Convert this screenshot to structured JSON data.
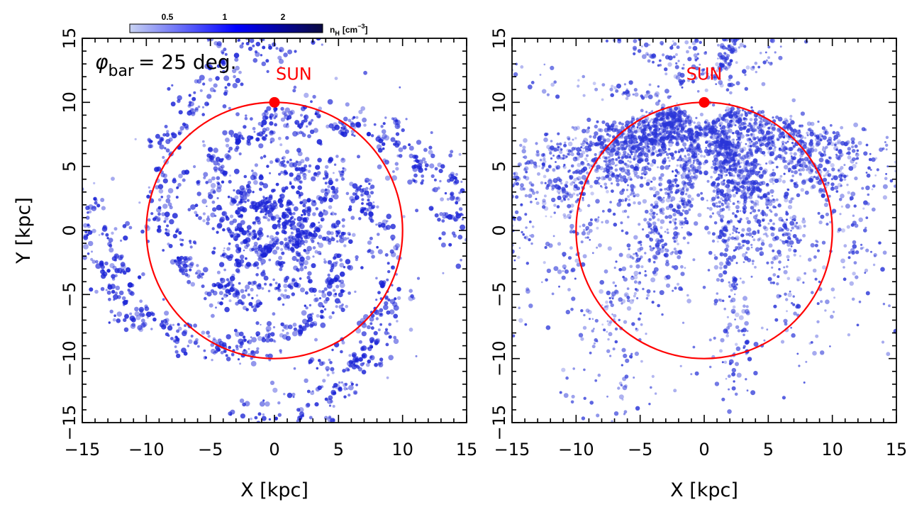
{
  "chart_data": [
    {
      "type": "scatter",
      "panel": "left",
      "annotation": {
        "symbol": "φ",
        "subscript": "bar",
        "text": "= 25 deg."
      },
      "colorbar": {
        "ticks": [
          "0.5",
          "1",
          "2"
        ],
        "unit_base": "n",
        "unit_sub": "H",
        "unit_text": "[cm",
        "unit_sup": "−3",
        "unit_close": "]",
        "colors": [
          "#c8d2f2",
          "#0000ff",
          "#0a0a40"
        ]
      },
      "xlabel": "X [kpc]",
      "ylabel": "Y [kpc]",
      "xlim": [
        -15,
        15
      ],
      "ylim": [
        -15,
        15
      ],
      "xticks": [
        "−15",
        "−10",
        "−5",
        "0",
        "5",
        "10",
        "15"
      ],
      "yticks": [
        "−15",
        "−10",
        "−5",
        "0",
        "5",
        "10",
        "15"
      ],
      "circle": {
        "center": [
          0,
          0
        ],
        "radius": 10,
        "color": "#ff0000"
      },
      "sun": {
        "label": "SUN",
        "x": 0,
        "y": 10,
        "color": "#ff0000"
      },
      "structure": {
        "kind": "spiral-arms",
        "arms": 4,
        "pitch_deg": 18,
        "rmax": 15.5,
        "color": "#1a23d6"
      }
    },
    {
      "type": "scatter",
      "panel": "right",
      "xlabel": "X [kpc]",
      "ylabel": "",
      "xlim": [
        -15,
        15
      ],
      "ylim": [
        -15,
        15
      ],
      "xticks": [
        "−15",
        "−10",
        "−5",
        "0",
        "5",
        "10",
        "15"
      ],
      "yticks": [
        "−15",
        "−10",
        "−5",
        "0",
        "5",
        "10",
        "15"
      ],
      "circle": {
        "center": [
          0,
          0
        ],
        "radius": 10,
        "color": "#ff0000"
      },
      "sun": {
        "label": "SUN",
        "x": 0,
        "y": 10,
        "color": "#ff0000"
      },
      "structure": {
        "kind": "sun-centred-streaks",
        "origin": [
          0,
          10
        ],
        "color": "#2a35d8"
      }
    }
  ]
}
